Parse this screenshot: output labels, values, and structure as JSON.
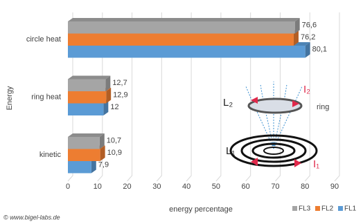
{
  "chart_data": {
    "type": "bar3d",
    "orientation": "horizontal",
    "categories": [
      "circle heat",
      "ring heat",
      "kinetic"
    ],
    "series": [
      {
        "name": "FL3",
        "color": "#a5a5a5",
        "values": [
          76.6,
          12.7,
          10.7
        ],
        "value_labels": [
          "76,6",
          "12,7",
          "10,7"
        ]
      },
      {
        "name": "FL2",
        "color": "#ed7d31",
        "values": [
          76.2,
          12.9,
          10.9
        ],
        "value_labels": [
          "76,2",
          "12,9",
          "10,9"
        ]
      },
      {
        "name": "FL1",
        "color": "#5b9bd5",
        "values": [
          80.1,
          12,
          7.9
        ],
        "value_labels": [
          "80,1",
          "12",
          "7,9"
        ]
      }
    ],
    "xlim": [
      0,
      90
    ],
    "xticks": [
      0,
      10,
      20,
      30,
      40,
      50,
      60,
      70,
      80,
      90
    ],
    "grid": true,
    "x_label": "energy percentage",
    "y_label": "Energy",
    "legend": "bottom-right",
    "annotations": [
      "L₂",
      "I₂",
      "ring",
      "L₁",
      "I₁"
    ],
    "credit": "© www.bigel-labs.de"
  }
}
